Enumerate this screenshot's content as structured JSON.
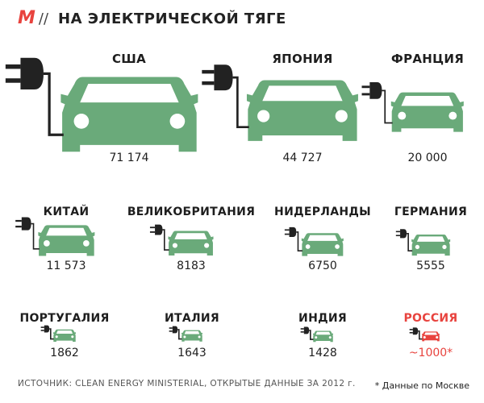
{
  "header": {
    "logo": "M",
    "separator": "//",
    "title": "НА ЭЛЕКТРИЧЕСКОЙ ТЯГЕ"
  },
  "colors": {
    "car": "#6aaa7a",
    "car_highlight": "#e8433e",
    "window": "#ffffff",
    "cord": "#222222",
    "accent": "#e8433e"
  },
  "chart_data": {
    "type": "pictogram",
    "title": "НА ЭЛЕКТРИЧЕСКОЙ ТЯГЕ",
    "categories": [
      "США",
      "ЯПОНИЯ",
      "ФРАНЦИЯ",
      "КИТАЙ",
      "ВЕЛИКОБРИТАНИЯ",
      "НИДЕРЛАНДЫ",
      "ГЕРМАНИЯ",
      "ПОРТУГАЛИЯ",
      "ИТАЛИЯ",
      "ИНДИЯ",
      "РОССИЯ"
    ],
    "values": [
      71174,
      44727,
      20000,
      11573,
      8183,
      6750,
      5555,
      1862,
      1643,
      1428,
      1000
    ],
    "labels": [
      "71 174",
      "44 727",
      "20 000",
      "11 573",
      "8183",
      "6750",
      "5555",
      "1862",
      "1643",
      "1428",
      "~1000*"
    ],
    "highlight": [
      "РОССИЯ"
    ]
  },
  "source": "ИСТОЧНИК: CLEAN ENERGY MINISTERIAL, ОТКРЫТЫЕ ДАННЫЕ ЗА 2012 г.",
  "footnote": "* Данные по Москве"
}
